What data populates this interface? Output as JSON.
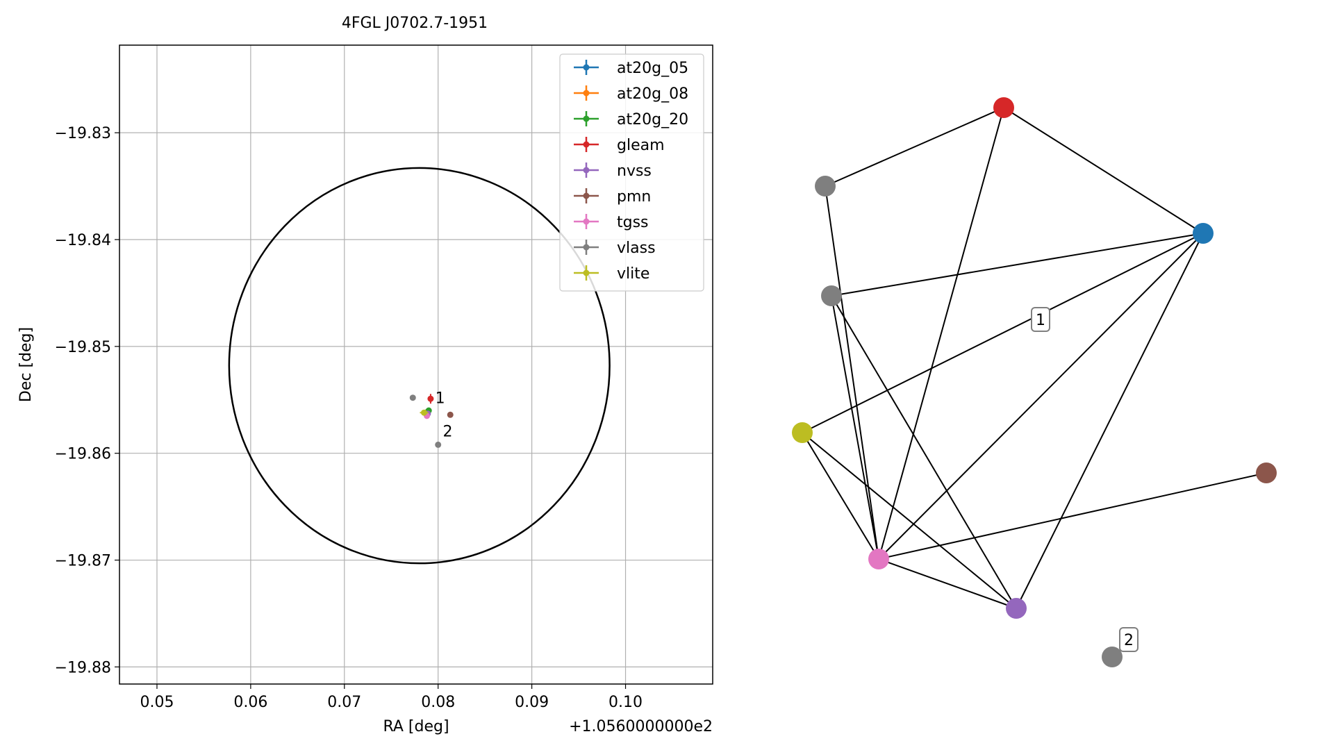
{
  "chart_data": [
    {
      "type": "scatter",
      "title": "4FGL J0702.7-1951",
      "xlabel": "RA [deg]",
      "ylabel": "Dec [deg]",
      "x_offset_label": "+1.0560000000e2",
      "xlim": [
        0.046,
        0.1093
      ],
      "ylim": [
        -19.8816,
        -19.8218
      ],
      "xticks": [
        0.05,
        0.06,
        0.07,
        0.08,
        0.09,
        0.1
      ],
      "xtick_labels": [
        "0.05",
        "0.06",
        "0.07",
        "0.08",
        "0.09",
        "0.10"
      ],
      "yticks": [
        -19.83,
        -19.84,
        -19.85,
        -19.86,
        -19.87,
        -19.88
      ],
      "ytick_labels": [
        "−19.83",
        "−19.84",
        "−19.85",
        "−19.86",
        "−19.87",
        "−19.88"
      ],
      "grid": true,
      "legend_position": "top-right",
      "ellipse": {
        "center": [
          0.078,
          -19.8518
        ],
        "semi_major_ra": 0.0203,
        "semi_minor_dec": 0.0185
      },
      "series": [
        {
          "name": "at20g_05",
          "color": "#1f77b4",
          "points": [
            [
              0.0789,
              -19.8561
            ]
          ]
        },
        {
          "name": "at20g_08",
          "color": "#ff7f0e",
          "points": [
            [
              0.0787,
              -19.8562
            ]
          ]
        },
        {
          "name": "at20g_20",
          "color": "#2ca02c",
          "points": [
            [
              0.079,
              -19.856
            ]
          ]
        },
        {
          "name": "gleam",
          "color": "#d62728",
          "points": [
            [
              0.0792,
              -19.8549
            ]
          ]
        },
        {
          "name": "nvss",
          "color": "#9467bd",
          "points": [
            [
              0.0789,
              -19.8563
            ]
          ]
        },
        {
          "name": "pmn",
          "color": "#8c564b",
          "points": [
            [
              0.0813,
              -19.8564
            ]
          ]
        },
        {
          "name": "tgss",
          "color": "#e377c2",
          "points": [
            [
              0.0788,
              -19.8565
            ]
          ]
        },
        {
          "name": "vlass",
          "color": "#7f7f7f",
          "points": [
            [
              0.0773,
              -19.8548
            ],
            [
              0.08,
              -19.8592
            ]
          ]
        },
        {
          "name": "vlite",
          "color": "#bcbd22",
          "points": [
            [
              0.0785,
              -19.8562
            ]
          ]
        }
      ],
      "annotations": [
        {
          "text": "1",
          "at": [
            0.0797,
            -19.8548
          ]
        },
        {
          "text": "2",
          "at": [
            0.0805,
            -19.8579
          ]
        }
      ]
    },
    {
      "type": "network",
      "nodes": [
        {
          "id": "gleam",
          "color": "#d62728"
        },
        {
          "id": "vlass_a",
          "color": "#7f7f7f"
        },
        {
          "id": "at20g",
          "color": "#1f77b4"
        },
        {
          "id": "vlass_b",
          "color": "#7f7f7f"
        },
        {
          "id": "vlite",
          "color": "#bcbd22"
        },
        {
          "id": "pmn",
          "color": "#8c564b"
        },
        {
          "id": "tgss",
          "color": "#e377c2"
        },
        {
          "id": "nvss",
          "color": "#9467bd"
        },
        {
          "id": "vlass_c",
          "color": "#7f7f7f"
        }
      ],
      "edges": [
        [
          "gleam",
          "vlass_a"
        ],
        [
          "gleam",
          "at20g"
        ],
        [
          "gleam",
          "tgss"
        ],
        [
          "vlass_a",
          "tgss"
        ],
        [
          "vlass_b",
          "at20g"
        ],
        [
          "vlass_b",
          "tgss"
        ],
        [
          "vlass_b",
          "nvss"
        ],
        [
          "vlite",
          "at20g"
        ],
        [
          "vlite",
          "tgss"
        ],
        [
          "vlite",
          "nvss"
        ],
        [
          "tgss",
          "at20g"
        ],
        [
          "tgss",
          "pmn"
        ],
        [
          "tgss",
          "nvss"
        ],
        [
          "nvss",
          "at20g"
        ]
      ],
      "labels": [
        {
          "text": "1"
        },
        {
          "text": "2"
        }
      ]
    }
  ]
}
